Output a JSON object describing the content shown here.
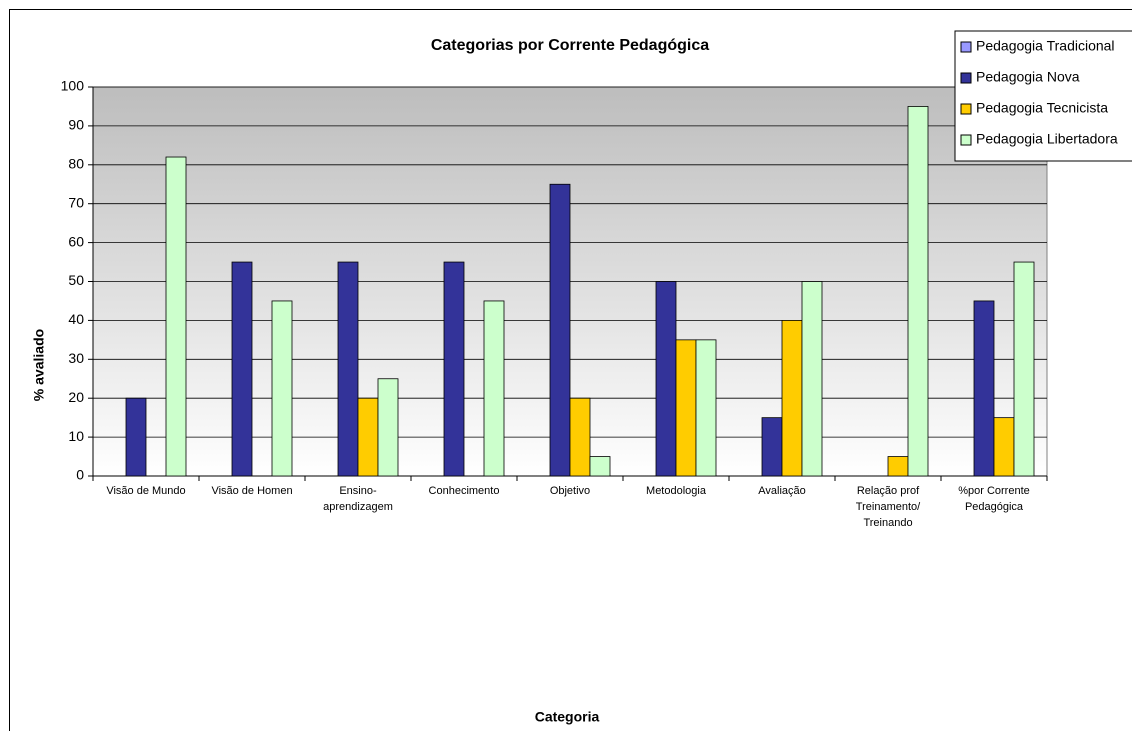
{
  "chart_data": {
    "type": "bar",
    "title": "Categorias por Corrente Pedagógica",
    "x_label": "Categoria",
    "y_label": "% avaliado",
    "categories": [
      "Visão de Mundo",
      "Visão de Homen",
      "Ensino-\naprendizagem",
      "Conhecimento",
      "Objetivo",
      "Metodologia",
      "Avaliação",
      "Relação prof\nTreinamento/\nTreinando",
      "%por Corrente\nPedagógica"
    ],
    "series": [
      {
        "name": "Pedagogia Tradicional",
        "color": "#9999ff",
        "values": [
          0,
          0,
          0,
          0,
          0,
          0,
          0,
          0,
          0
        ]
      },
      {
        "name": "Pedagogia Nova",
        "color": "#333399",
        "values": [
          20,
          55,
          55,
          55,
          75,
          50,
          15,
          0,
          45
        ]
      },
      {
        "name": "Pedagogia Tecnicista",
        "color": "#ffcc00",
        "values": [
          0,
          0,
          20,
          0,
          20,
          35,
          40,
          5,
          15
        ]
      },
      {
        "name": "Pedagogia Libertadora",
        "color": "#ccffcc",
        "values": [
          82,
          45,
          25,
          45,
          5,
          35,
          50,
          95,
          55
        ]
      }
    ],
    "ylim": [
      0,
      100
    ],
    "yticks": [
      0,
      10,
      20,
      30,
      40,
      50,
      60,
      70,
      80,
      90,
      100
    ],
    "grid": true,
    "legend": "top-right"
  }
}
